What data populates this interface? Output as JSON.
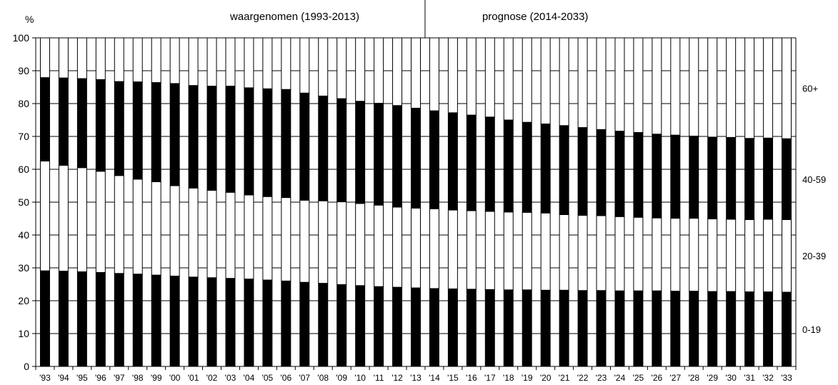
{
  "chart_data": {
    "type": "bar",
    "stacked": true,
    "ylabel": "%",
    "ylim": [
      0,
      100
    ],
    "yticks": [
      0,
      10,
      20,
      30,
      40,
      50,
      60,
      70,
      80,
      90,
      100
    ],
    "grid": true,
    "legend_placement": "right",
    "period_labels": [
      "waargenomen (1993-2013)",
      "prognose (2014-2033)"
    ],
    "period_split_after": "'13",
    "categories": [
      "'93",
      "'94",
      "'95",
      "'96",
      "'97",
      "'98",
      "'99",
      "'00",
      "'01",
      "'02",
      "'03",
      "'04",
      "'05",
      "'06",
      "'07",
      "'08",
      "'09",
      "'10",
      "'11",
      "'12",
      "'13",
      "'14",
      "'15",
      "'16",
      "'17",
      "'18",
      "'19",
      "'20",
      "'21",
      "'22",
      "'23",
      "'24",
      "'25",
      "'26",
      "'27",
      "'28",
      "'29",
      "'30",
      "'31",
      "'32",
      "'33"
    ],
    "series": [
      {
        "name": "0-19",
        "color": "#000000",
        "values": [
          29.1,
          29.0,
          28.8,
          28.6,
          28.3,
          28.1,
          27.8,
          27.5,
          27.2,
          27.0,
          26.8,
          26.6,
          26.3,
          26.0,
          25.6,
          25.3,
          24.9,
          24.6,
          24.3,
          24.1,
          23.9,
          23.7,
          23.6,
          23.5,
          23.4,
          23.3,
          23.3,
          23.2,
          23.2,
          23.1,
          23.1,
          23.0,
          23.0,
          23.0,
          22.9,
          22.9,
          22.8,
          22.8,
          22.7,
          22.7,
          22.6
        ]
      },
      {
        "name": "20-39",
        "color": "#ffffff",
        "values": [
          33.4,
          32.2,
          31.7,
          30.8,
          29.8,
          28.9,
          28.4,
          27.5,
          27.1,
          26.6,
          26.2,
          25.6,
          25.4,
          25.4,
          25.0,
          25.1,
          25.2,
          25.0,
          24.8,
          24.4,
          24.3,
          24.3,
          24.0,
          23.9,
          23.8,
          23.7,
          23.6,
          23.5,
          23.0,
          22.9,
          22.8,
          22.6,
          22.4,
          22.2,
          22.2,
          22.2,
          22.1,
          22.0,
          22.0,
          22.1,
          22.1
        ]
      },
      {
        "name": "40-59",
        "color": "#000000",
        "values": [
          25.4,
          26.6,
          27.1,
          27.9,
          28.6,
          29.6,
          30.2,
          31.1,
          31.2,
          31.7,
          32.3,
          32.6,
          32.8,
          32.9,
          32.6,
          31.9,
          31.4,
          31.1,
          31.0,
          30.9,
          30.4,
          29.8,
          29.6,
          29.1,
          28.7,
          28.0,
          27.4,
          27.1,
          27.1,
          26.7,
          26.2,
          26.0,
          25.8,
          25.5,
          25.3,
          25.0,
          24.9,
          24.9,
          24.7,
          24.7,
          24.6
        ]
      },
      {
        "name": "60+",
        "color": "#ffffff",
        "values": [
          12.1,
          12.2,
          12.4,
          12.7,
          13.3,
          13.4,
          13.6,
          13.9,
          14.5,
          14.7,
          14.7,
          15.2,
          15.5,
          15.7,
          16.8,
          17.7,
          18.5,
          19.3,
          19.9,
          20.6,
          21.4,
          22.2,
          22.8,
          23.5,
          24.1,
          25.0,
          25.7,
          26.2,
          26.7,
          27.3,
          27.9,
          28.4,
          28.8,
          29.3,
          29.6,
          29.9,
          30.2,
          30.3,
          30.6,
          30.5,
          30.7
        ]
      }
    ]
  }
}
